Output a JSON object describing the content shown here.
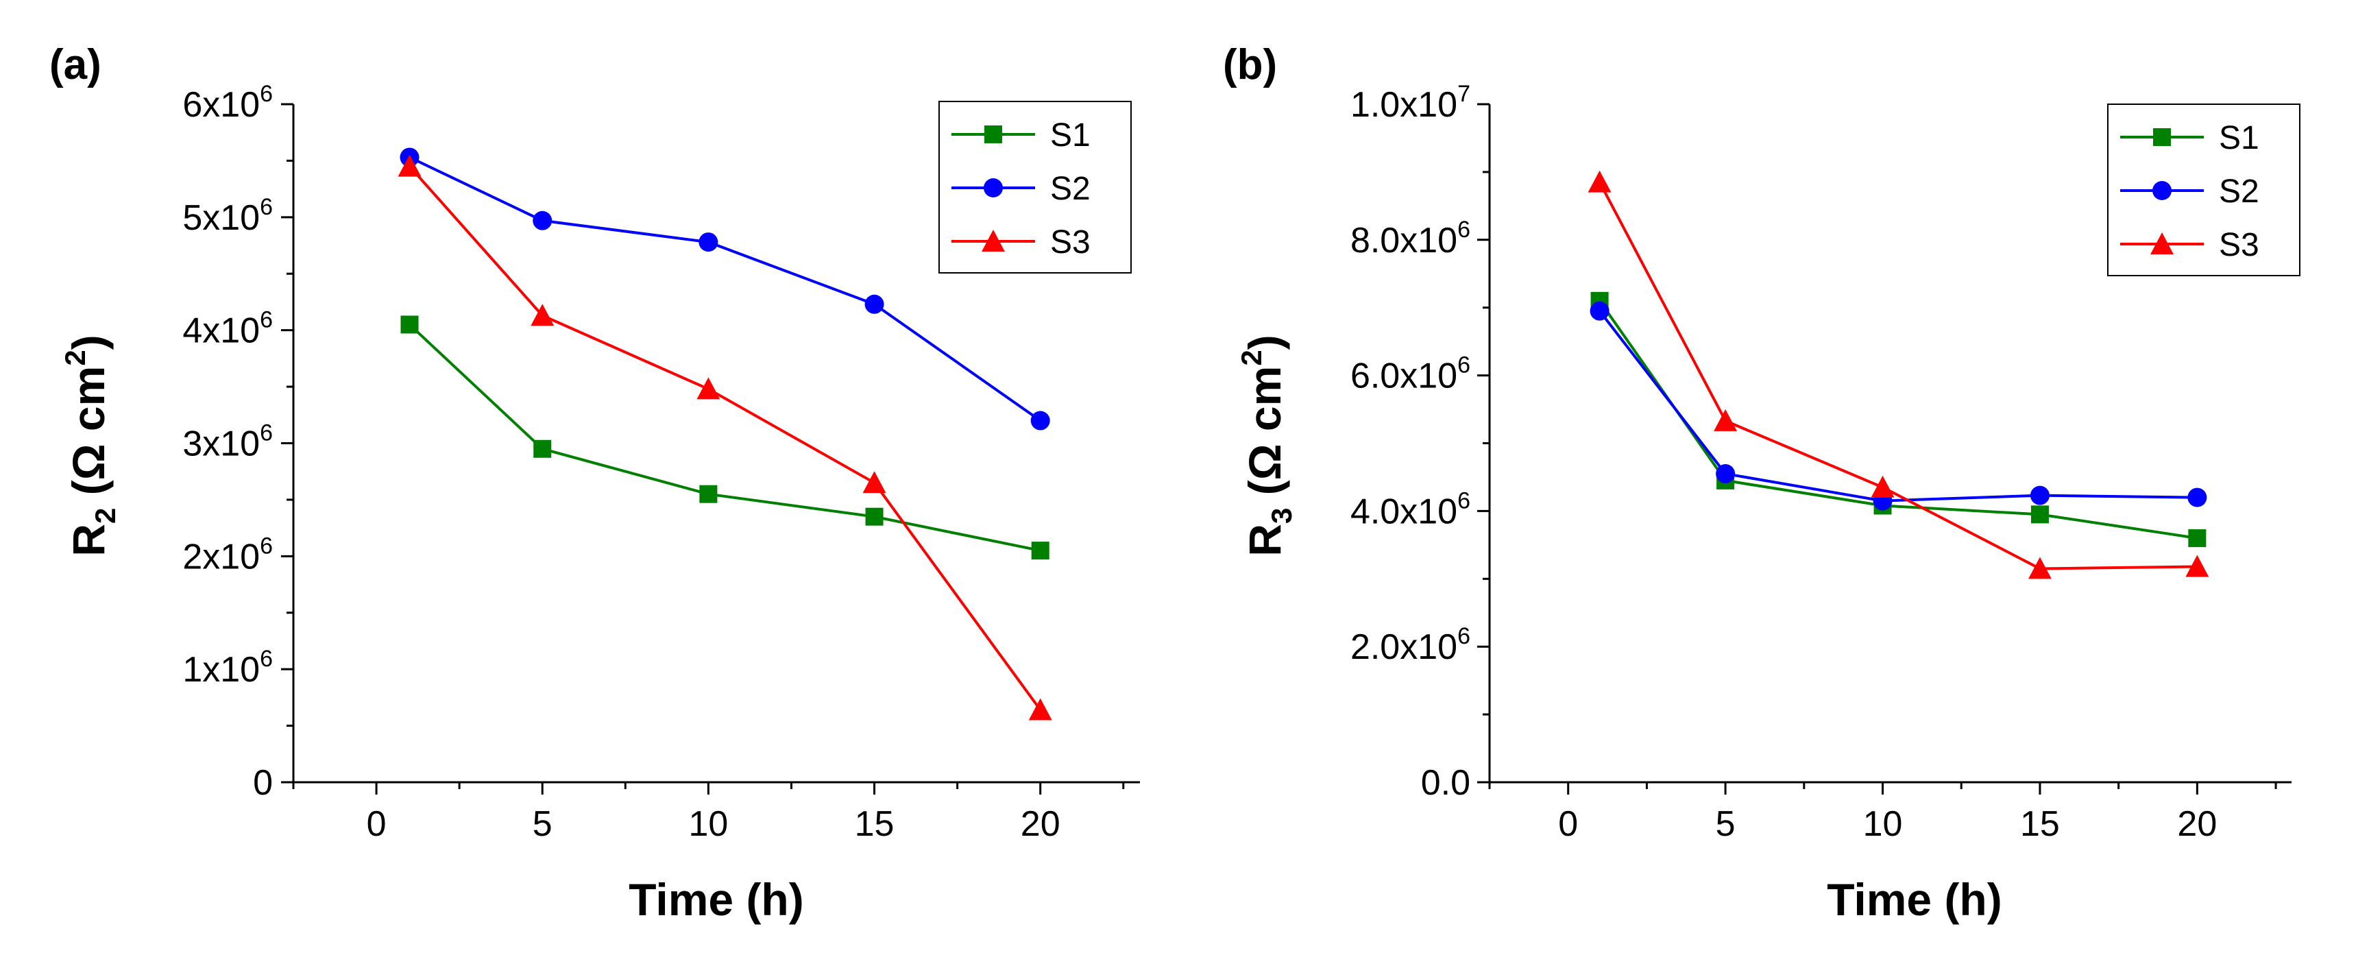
{
  "chart_data": [
    {
      "type": "line",
      "panel_label": "(a)",
      "title": "",
      "xlabel": "Time (h)",
      "ylabel_main": "R",
      "ylabel_sub": "2",
      "ylabel_unit": " (Ω cm",
      "ylabel_unit_sup": "2",
      "ylabel_close": ")",
      "xlim": [
        -2.5,
        23
      ],
      "ylim": [
        0,
        6000000
      ],
      "xticks": [
        0,
        5,
        10,
        15,
        20
      ],
      "xtick_labels": [
        "0",
        "5",
        "10",
        "15",
        "20"
      ],
      "yticks": [
        0,
        1000000,
        2000000,
        3000000,
        4000000,
        5000000,
        6000000
      ],
      "ytick_labels": [
        {
          "base": "0",
          "exp": ""
        },
        {
          "base": "1x10",
          "exp": "6"
        },
        {
          "base": "2x10",
          "exp": "6"
        },
        {
          "base": "3x10",
          "exp": "6"
        },
        {
          "base": "4x10",
          "exp": "6"
        },
        {
          "base": "5x10",
          "exp": "6"
        },
        {
          "base": "6x10",
          "exp": "6"
        }
      ],
      "legend_position": "top-right",
      "x": [
        1,
        5,
        10,
        15,
        20
      ],
      "series": [
        {
          "name": "S1",
          "color": "#008000",
          "marker": "square",
          "values": [
            4050000,
            2950000,
            2550000,
            2350000,
            2050000
          ]
        },
        {
          "name": "S2",
          "color": "#0000ff",
          "marker": "circle",
          "values": [
            5530000,
            4970000,
            4780000,
            4230000,
            3200000
          ]
        },
        {
          "name": "S3",
          "color": "#ff0000",
          "marker": "triangle",
          "values": [
            5450000,
            4130000,
            3480000,
            2650000,
            640000
          ]
        }
      ]
    },
    {
      "type": "line",
      "panel_label": "(b)",
      "title": "",
      "xlabel": "Time (h)",
      "ylabel_main": "R",
      "ylabel_sub": "3",
      "ylabel_unit": " (Ω cm",
      "ylabel_unit_sup": "2",
      "ylabel_close": ")",
      "xlim": [
        -2.5,
        23
      ],
      "ylim": [
        0,
        10000000
      ],
      "xticks": [
        0,
        5,
        10,
        15,
        20
      ],
      "xtick_labels": [
        "0",
        "5",
        "10",
        "15",
        "20"
      ],
      "yticks": [
        0,
        2000000,
        4000000,
        6000000,
        8000000,
        10000000
      ],
      "ytick_labels": [
        {
          "base": "0.0",
          "exp": ""
        },
        {
          "base": "2.0x10",
          "exp": "6"
        },
        {
          "base": "4.0x10",
          "exp": "6"
        },
        {
          "base": "6.0x10",
          "exp": "6"
        },
        {
          "base": "8.0x10",
          "exp": "6"
        },
        {
          "base": "1.0x10",
          "exp": "7"
        }
      ],
      "legend_position": "top-right",
      "x": [
        1,
        5,
        10,
        15,
        20
      ],
      "series": [
        {
          "name": "S1",
          "color": "#008000",
          "marker": "square",
          "values": [
            7100000,
            4450000,
            4080000,
            3950000,
            3600000
          ]
        },
        {
          "name": "S2",
          "color": "#0000ff",
          "marker": "circle",
          "values": [
            6950000,
            4550000,
            4150000,
            4230000,
            4200000
          ]
        },
        {
          "name": "S3",
          "color": "#ff0000",
          "marker": "triangle",
          "values": [
            8850000,
            5330000,
            4350000,
            3150000,
            3180000
          ]
        }
      ]
    }
  ]
}
